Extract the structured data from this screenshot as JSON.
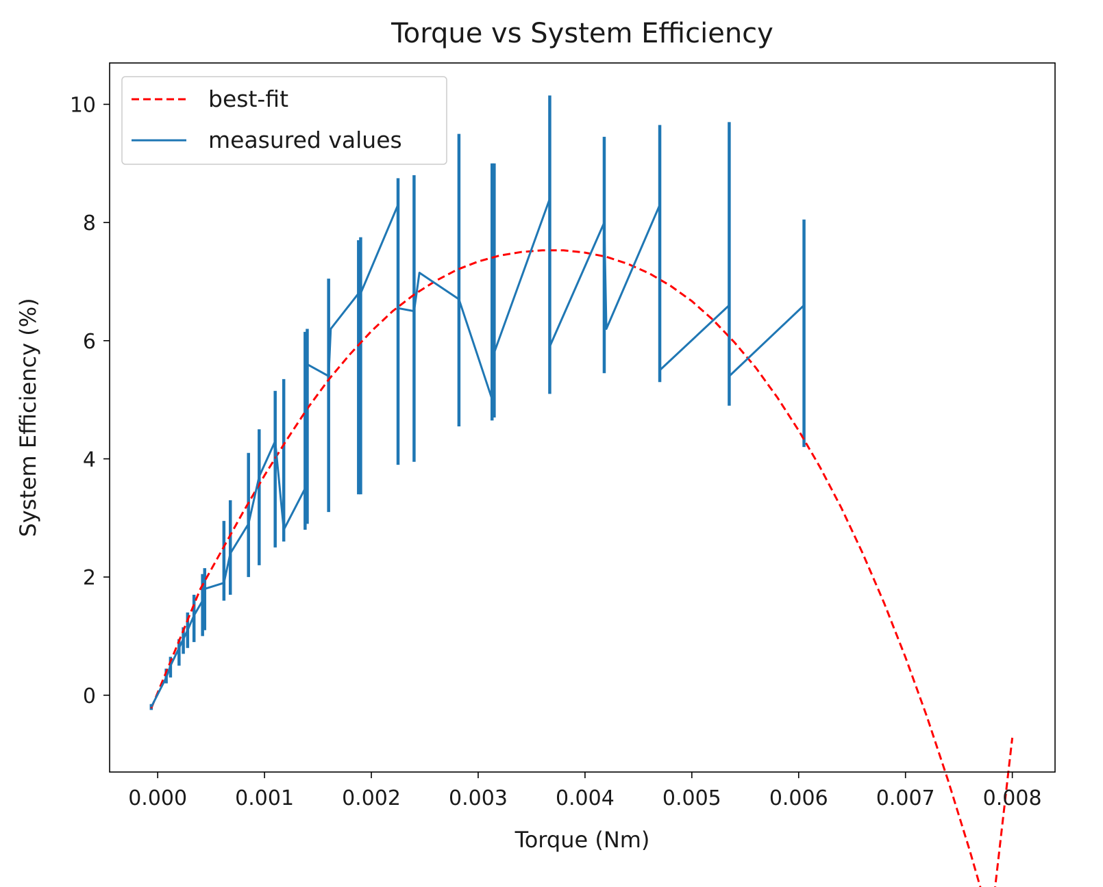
{
  "chart_data": {
    "type": "line",
    "title": "Torque vs System Efficiency",
    "xlabel": "Torque (Nm)",
    "ylabel": "System Efficiency (%)",
    "xlim": [
      -0.00045,
      0.0084
    ],
    "ylim": [
      -1.3,
      10.7
    ],
    "xticks": [
      0.0,
      0.001,
      0.002,
      0.003,
      0.004,
      0.005,
      0.006,
      0.007,
      0.008
    ],
    "xtick_labels": [
      "0.000",
      "0.001",
      "0.002",
      "0.003",
      "0.004",
      "0.005",
      "0.006",
      "0.007",
      "0.008"
    ],
    "yticks": [
      0,
      2,
      4,
      6,
      8,
      10
    ],
    "ytick_labels": [
      "0",
      "2",
      "4",
      "6",
      "8",
      "10"
    ],
    "legend_position": "upper-left",
    "grid": false,
    "series": [
      {
        "name": "best-fit",
        "style": "dashed",
        "color": "#ff0000",
        "x": [
          -6e-05,
          0.0002,
          0.0004,
          0.0006,
          0.0008,
          0.001,
          0.0012,
          0.0014,
          0.0016,
          0.0018,
          0.002,
          0.0022,
          0.0024,
          0.0026,
          0.0028,
          0.003,
          0.0032,
          0.0034,
          0.0036,
          0.0038,
          0.004,
          0.0042,
          0.0044,
          0.0046,
          0.0048,
          0.005,
          0.0052,
          0.0054,
          0.0056,
          0.0058,
          0.006,
          0.0062,
          0.0064,
          0.0066,
          0.0068,
          0.007,
          0.0072,
          0.0074,
          0.0076,
          0.0078,
          0.008
        ],
        "y": [
          -0.22,
          0.92,
          1.8,
          2.45,
          3.1,
          3.72,
          4.3,
          4.85,
          5.34,
          5.77,
          6.16,
          6.5,
          6.78,
          7.01,
          7.2,
          7.34,
          7.44,
          7.5,
          7.53,
          7.53,
          7.49,
          7.42,
          7.3,
          7.14,
          6.93,
          6.67,
          6.35,
          5.97,
          5.54,
          5.04,
          4.48,
          3.86,
          3.17,
          2.4,
          1.56,
          0.64,
          -0.36,
          -1.45,
          -2.62,
          -3.87,
          -0.72
        ]
      },
      {
        "name": "measured values",
        "style": "solid",
        "color": "#1f77b4",
        "x": [
          -6e-05,
          8e-05,
          0.00012,
          0.0002,
          0.00028,
          0.00034,
          0.00042,
          0.00044,
          0.00062,
          0.00068,
          0.00085,
          0.00095,
          0.0011,
          0.00118,
          0.00138,
          0.0014,
          0.0016,
          0.00162,
          0.00188,
          0.0019,
          0.00225,
          0.00225,
          0.0024,
          0.00245,
          0.00282,
          0.00315,
          0.00315,
          0.00367,
          0.00367,
          0.00418,
          0.0042,
          0.0047,
          0.0047,
          0.00535,
          0.00535,
          0.00605
        ],
        "y": [
          -0.2,
          0.3,
          0.5,
          0.8,
          1.1,
          1.35,
          1.6,
          1.8,
          1.9,
          2.4,
          2.9,
          3.7,
          4.3,
          2.8,
          3.5,
          5.6,
          5.4,
          6.2,
          6.8,
          6.8,
          8.3,
          6.55,
          6.5,
          7.15,
          6.7,
          4.9,
          5.8,
          8.4,
          5.9,
          8.0,
          6.2,
          8.3,
          5.5,
          6.6,
          5.4,
          6.6
        ]
      }
    ],
    "error_bars": {
      "series": "measured values",
      "x": [
        -6e-05,
        8e-05,
        0.00012,
        0.0002,
        0.00024,
        0.00028,
        0.00034,
        0.00042,
        0.00044,
        0.00062,
        0.00068,
        0.00085,
        0.00095,
        0.0011,
        0.00118,
        0.00138,
        0.0014,
        0.0016,
        0.00188,
        0.0019,
        0.00225,
        0.0024,
        0.00282,
        0.00313,
        0.00315,
        0.00367,
        0.00418,
        0.0047,
        0.00535,
        0.00605
      ],
      "low": [
        -0.25,
        0.2,
        0.3,
        0.5,
        0.7,
        0.8,
        0.9,
        1.0,
        1.1,
        1.6,
        1.7,
        2.0,
        2.2,
        2.5,
        2.6,
        2.8,
        2.9,
        3.1,
        3.4,
        3.4,
        3.9,
        3.95,
        4.55,
        4.65,
        4.7,
        5.1,
        5.45,
        5.3,
        4.9,
        4.2
      ],
      "high": [
        -0.15,
        0.45,
        0.65,
        0.95,
        1.15,
        1.4,
        1.7,
        2.05,
        2.15,
        2.95,
        3.3,
        4.1,
        4.5,
        5.15,
        5.35,
        6.15,
        6.2,
        7.05,
        7.7,
        7.75,
        8.75,
        8.8,
        9.5,
        9.0,
        9.0,
        10.15,
        9.45,
        9.65,
        9.7,
        8.05
      ]
    }
  }
}
